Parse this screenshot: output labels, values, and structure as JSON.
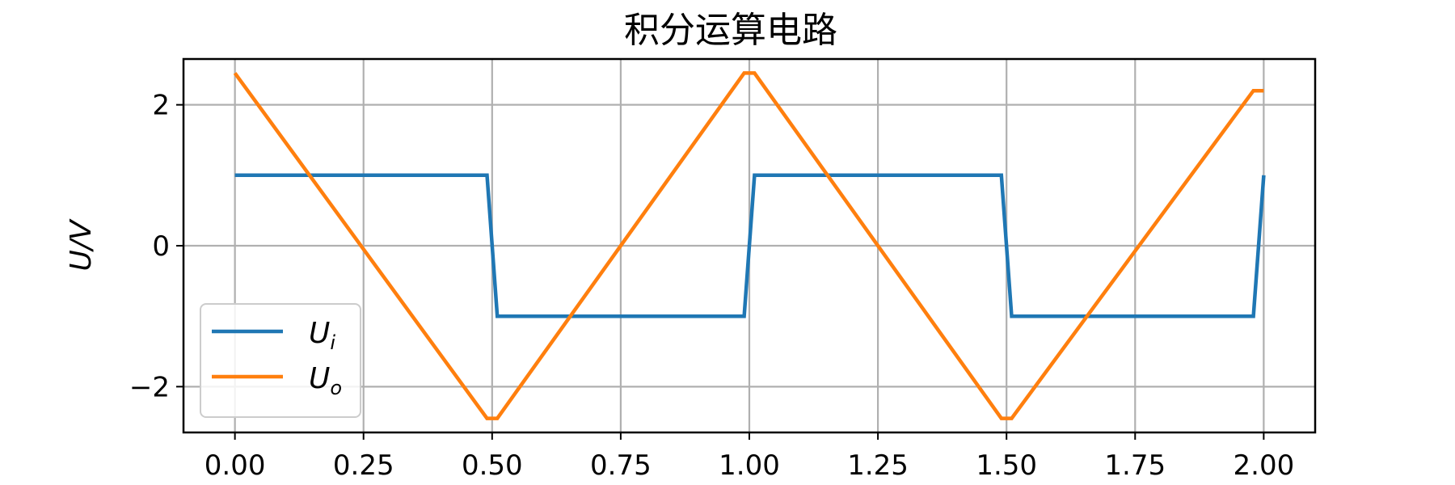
{
  "chart_data": {
    "type": "line",
    "title": "积分运算电路",
    "xlabel": "",
    "ylabel": "U/V",
    "xlim": [
      -0.1,
      2.1
    ],
    "ylim": [
      -2.65,
      2.65
    ],
    "grid": true,
    "legend_position": "lower-left",
    "x_ticks": [
      0.0,
      0.25,
      0.5,
      0.75,
      1.0,
      1.25,
      1.5,
      1.75,
      2.0
    ],
    "x_tick_labels": [
      "0.00",
      "0.25",
      "0.50",
      "0.75",
      "1.00",
      "1.25",
      "1.50",
      "1.75",
      "2.00"
    ],
    "y_ticks": [
      -2,
      0,
      2
    ],
    "y_tick_labels": [
      "−2",
      "0",
      "2"
    ],
    "series": [
      {
        "name_main": "U",
        "name_sub": "i",
        "color": "#1f77b4",
        "x": [
          0.0,
          0.49,
          0.51,
          0.99,
          1.01,
          1.49,
          1.51,
          1.98,
          2.0
        ],
        "y": [
          1,
          1,
          -1,
          -1,
          1,
          1,
          -1,
          -1,
          1
        ]
      },
      {
        "name_main": "U",
        "name_sub": "o",
        "color": "#ff7f0e",
        "x": [
          0.0,
          0.49,
          0.51,
          0.99,
          1.01,
          1.49,
          1.51,
          1.98,
          2.0
        ],
        "y": [
          2.45,
          -2.45,
          -2.45,
          2.45,
          2.45,
          -2.45,
          -2.45,
          2.2,
          2.2
        ]
      }
    ]
  }
}
